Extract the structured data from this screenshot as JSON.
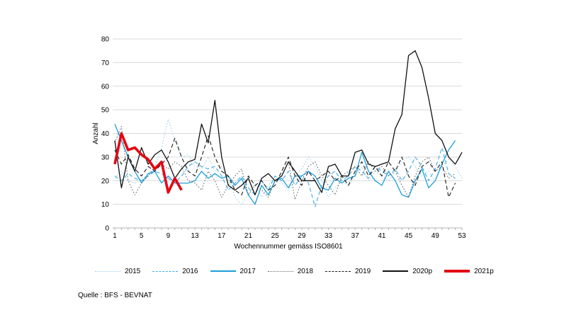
{
  "source_note": "Quelle : BFS - BEVNAT",
  "chart_data": {
    "type": "line",
    "title": "",
    "xlabel": "Wochennummer gemäss ISO8601",
    "ylabel": "Anzahl",
    "ylim": [
      0,
      80
    ],
    "ytick_step": 10,
    "x_range": [
      1,
      53
    ],
    "xticks": [
      1,
      5,
      9,
      13,
      17,
      21,
      25,
      29,
      33,
      37,
      41,
      45,
      49,
      53
    ],
    "grid": "horizontal",
    "grid_color": "#d9d9d9",
    "axis_color": "#b3b3b3",
    "legend_position": "bottom",
    "x_axis_unit": "Wochennummer (Woche 1 bis 53)",
    "series": [
      {
        "name": "2015",
        "line_style": "dotted",
        "color": "#9fd3ef",
        "thick": false,
        "start_week": 1,
        "values": [
          21,
          24,
          20,
          19,
          21,
          22,
          26,
          34,
          46,
          37,
          30,
          31,
          26,
          25,
          30,
          24,
          26,
          21,
          13,
          10,
          14,
          19,
          13,
          18,
          21,
          19,
          16,
          22,
          25,
          30,
          26,
          20,
          13,
          17,
          20,
          18,
          22,
          26,
          20,
          24,
          22,
          20,
          24,
          28,
          30,
          26,
          22,
          24,
          20,
          26,
          29,
          26,
          21
        ]
      },
      {
        "name": "2016",
        "line_style": "dashed",
        "color": "#3fabe0",
        "thick": false,
        "start_week": 1,
        "values": [
          22,
          20,
          23,
          21,
          20,
          22,
          24,
          23,
          21,
          19,
          22,
          26,
          28,
          26,
          25,
          26,
          22,
          16,
          19,
          22,
          17,
          14,
          20,
          16,
          22,
          20,
          24,
          18,
          22,
          19,
          9,
          18,
          22,
          24,
          20,
          22,
          26,
          24,
          21,
          26,
          24,
          22,
          25,
          20,
          24,
          30,
          26,
          20,
          25,
          34,
          23,
          21
        ]
      },
      {
        "name": "2017",
        "line_style": "solid",
        "color": "#1d9fd9",
        "thick": false,
        "start_week": 1,
        "values": [
          44,
          37,
          30,
          24,
          19,
          23,
          24,
          19,
          22,
          19,
          19,
          19,
          20,
          24,
          21,
          23,
          21,
          22,
          18,
          21,
          14,
          10,
          18,
          14,
          20,
          21,
          17,
          22,
          22,
          24,
          22,
          17,
          16,
          21,
          19,
          21,
          22,
          32,
          24,
          20,
          18,
          24,
          20,
          14,
          13,
          20,
          25,
          17,
          20,
          27,
          33,
          37
        ]
      },
      {
        "name": "2018",
        "line_style": "dotted",
        "color": "#6b6b6b",
        "thick": false,
        "start_week": 1,
        "values": [
          36,
          43,
          20,
          14,
          19,
          22,
          26,
          27,
          25,
          28,
          26,
          20,
          19,
          16,
          24,
          20,
          13,
          18,
          22,
          25,
          14,
          18,
          16,
          13,
          20,
          22,
          28,
          12,
          20,
          26,
          28,
          22,
          18,
          14,
          22,
          24,
          26,
          22,
          28,
          24,
          26,
          22,
          24,
          18,
          13,
          22,
          28,
          30,
          24,
          26,
          21,
          23
        ]
      },
      {
        "name": "2019",
        "line_style": "dashed",
        "color": "#1a1a1a",
        "thick": false,
        "start_week": 1,
        "values": [
          33,
          27,
          31,
          25,
          22,
          26,
          24,
          27,
          30,
          38,
          30,
          24,
          22,
          30,
          39,
          30,
          24,
          22,
          16,
          14,
          22,
          18,
          20,
          16,
          18,
          24,
          30,
          22,
          18,
          24,
          20,
          22,
          24,
          20,
          22,
          18,
          24,
          28,
          22,
          26,
          22,
          28,
          24,
          30,
          22,
          18,
          26,
          28,
          24,
          28,
          13,
          19
        ]
      },
      {
        "name": "2020p",
        "line_style": "solid",
        "color": "#111111",
        "thick": false,
        "start_week": 1,
        "values": [
          37,
          17,
          30,
          24,
          34,
          27,
          31,
          33,
          28,
          21,
          25,
          28,
          29,
          44,
          36,
          54,
          30,
          18,
          16,
          18,
          21,
          14,
          21,
          23,
          20,
          22,
          28,
          24,
          20,
          20,
          20,
          15,
          26,
          27,
          22,
          22,
          32,
          33,
          27,
          26,
          27,
          28,
          42,
          48,
          73,
          75,
          68,
          55,
          40,
          37,
          30,
          27,
          32
        ]
      },
      {
        "name": "2021p",
        "line_style": "solid",
        "color": "#e30613",
        "thick": true,
        "start_week": 1,
        "values": [
          27,
          40,
          33,
          34,
          31,
          29,
          25,
          28,
          15,
          21,
          16
        ]
      }
    ]
  }
}
